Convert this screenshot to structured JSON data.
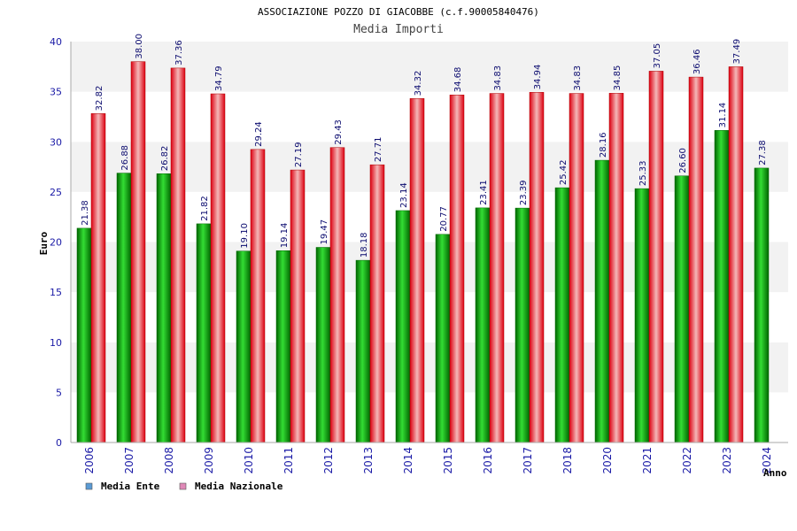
{
  "chart_data": {
    "type": "bar",
    "title": "ASSOCIAZIONE POZZO DI GIACOBBE (c.f.90005840476)",
    "subtitle": "Media Importi",
    "xlabel": "Anno",
    "ylabel": "Euro",
    "ylim": [
      0,
      40
    ],
    "yticks": [
      0,
      5,
      10,
      15,
      20,
      25,
      30,
      35,
      40
    ],
    "categories": [
      "2006",
      "2007",
      "2008",
      "2009",
      "2010",
      "2011",
      "2012",
      "2013",
      "2014",
      "2015",
      "2016",
      "2017",
      "2018",
      "2020",
      "2021",
      "2022",
      "2023",
      "2024"
    ],
    "series": [
      {
        "name": "Media Ente",
        "color": "#00aa00",
        "legend_color": "#5b9bd5",
        "values": [
          21.38,
          26.88,
          26.82,
          21.82,
          19.1,
          19.14,
          19.47,
          18.18,
          23.14,
          20.77,
          23.41,
          23.39,
          25.42,
          28.16,
          25.33,
          26.6,
          31.14,
          27.38
        ],
        "labels": [
          "21.38",
          "26.88",
          "26.82",
          "21.82",
          "19.10",
          "19.14",
          "19.47",
          "18.18",
          "23.14",
          "20.77",
          "23.41",
          "23.39",
          "25.42",
          "28.16",
          "25.33",
          "26.60",
          "31.14",
          "27.38"
        ]
      },
      {
        "name": "Media Nazionale",
        "color": "#ee1111",
        "legend_color": "#e089b8",
        "values": [
          32.82,
          38.0,
          37.36,
          34.79,
          29.24,
          27.19,
          29.43,
          27.71,
          34.32,
          34.68,
          34.83,
          34.94,
          34.83,
          34.85,
          37.05,
          36.46,
          37.49,
          null
        ],
        "labels": [
          "32.82",
          "38.00",
          "37.36",
          "34.79",
          "29.24",
          "27.19",
          "29.43",
          "27.71",
          "34.32",
          "34.68",
          "34.83",
          "34.94",
          "34.83",
          "34.85",
          "37.05",
          "36.46",
          "37.49",
          null
        ]
      }
    ],
    "grid": true,
    "legend_position": "bottom-left"
  }
}
